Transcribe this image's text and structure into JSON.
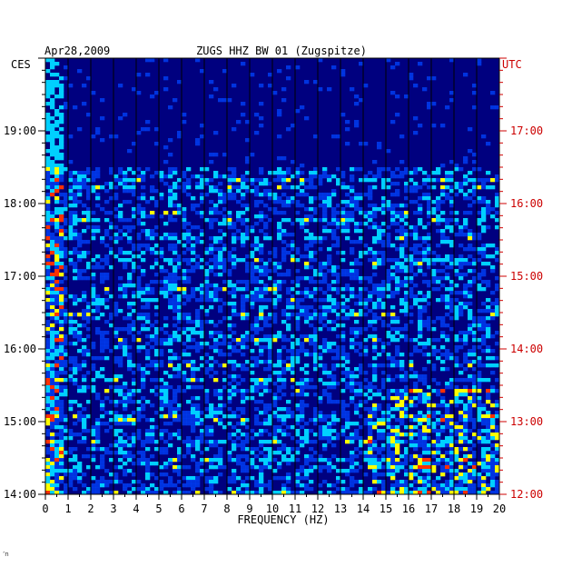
{
  "chart_data": {
    "type": "heatmap",
    "title_left": "Apr28,2009",
    "title_center": "ZUGS HHZ BW 01 (Zugspitze)",
    "left_tz_label": "CES",
    "right_tz_label": "UTC",
    "xlabel": "FREQUENCY (HZ)",
    "x_ticks": [
      "0",
      "1",
      "2",
      "3",
      "4",
      "5",
      "6",
      "7",
      "8",
      "9",
      "10",
      "11",
      "12",
      "13",
      "14",
      "15",
      "16",
      "17",
      "18",
      "19",
      "20"
    ],
    "xlim": [
      0,
      20
    ],
    "left_time_ticks": [
      {
        "label": "19:00",
        "hour": 19
      },
      {
        "label": "18:00",
        "hour": 18
      },
      {
        "label": "17:00",
        "hour": 17
      },
      {
        "label": "16:00",
        "hour": 16
      },
      {
        "label": "15:00",
        "hour": 15
      },
      {
        "label": "14:00",
        "hour": 14
      }
    ],
    "right_time_ticks": [
      {
        "label": "17:00",
        "hour": 17
      },
      {
        "label": "16:00",
        "hour": 16
      },
      {
        "label": "15:00",
        "hour": 15
      },
      {
        "label": "14:00",
        "hour": 14
      },
      {
        "label": "13:00",
        "hour": 13
      },
      {
        "label": "12:00",
        "hour": 12
      }
    ],
    "ylim_local_hours": [
      14.0,
      20.0
    ],
    "colors": {
      "low": "#00007f",
      "mid": "#0044ff",
      "high": "#00d0ff",
      "peak": "#ffff00",
      "max": "#ff3000"
    }
  },
  "footer_mark": "ʼn"
}
